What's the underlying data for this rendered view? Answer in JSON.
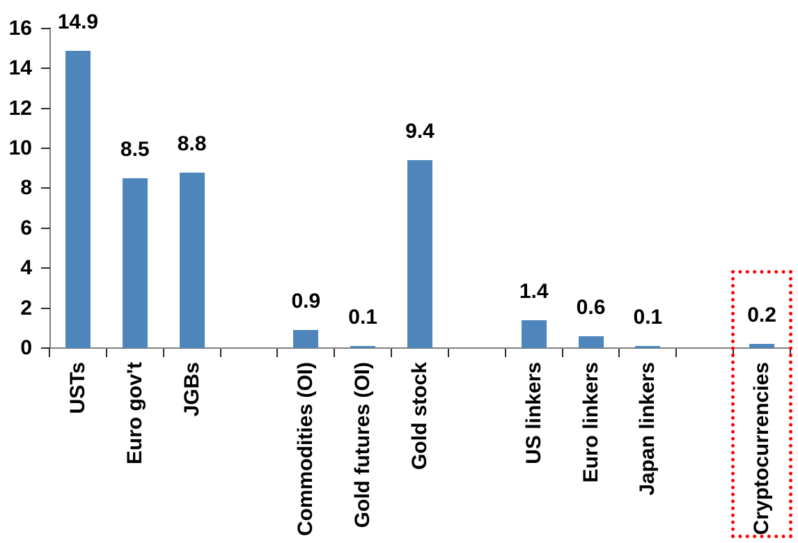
{
  "chart_data": {
    "type": "bar",
    "title": "",
    "xlabel": "",
    "ylabel": "",
    "categories": [
      "USTs",
      "Euro gov't",
      "JGBs",
      "Commodities (OI)",
      "Gold futures (OI)",
      "Gold stock",
      "US linkers",
      "Euro linkers",
      "Japan linkers",
      "Cryptocurrencies"
    ],
    "values": [
      14.9,
      8.5,
      8.8,
      0.9,
      0.1,
      9.4,
      1.4,
      0.6,
      0.1,
      0.2
    ],
    "data_labels": [
      "14.9",
      "8.5",
      "8.8",
      "0.9",
      "0.1",
      "9.4",
      "1.4",
      "0.6",
      "0.1",
      "0.2"
    ],
    "slot_indices": [
      0,
      1,
      2,
      4,
      5,
      6,
      8,
      9,
      10,
      12
    ],
    "total_slots": 13,
    "y_ticks": [
      0,
      2,
      4,
      6,
      8,
      10,
      12,
      14,
      16
    ],
    "ylim": [
      0,
      16
    ],
    "grid": false,
    "legend": false,
    "bar_color": "#4E86BC",
    "axis_line_color": "#7F7F7F",
    "tick_color": "#2B2B2B",
    "text_color": "#000000",
    "highlight": {
      "category": "Cryptocurrencies",
      "shape": "dotted-rectangle",
      "color": "#FF0000"
    }
  }
}
